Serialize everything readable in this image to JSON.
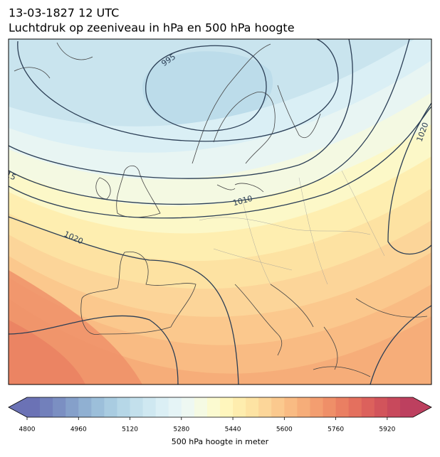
{
  "map": {
    "title": "13-03-1827 12 UTC",
    "subtitle": "Luchtdruk op zeeniveau in hPa en 500 hPa hoogte",
    "contour_labels": [
      995,
      1010,
      1020,
      1020,
      15
    ],
    "colorbar": {
      "label": "500 hPa hoogte in meter",
      "lim": [
        4800,
        6000
      ],
      "ticks": [
        4800,
        4960,
        5120,
        5280,
        5440,
        5600,
        5760,
        5920
      ],
      "colors": [
        "#6b72b5",
        "#7280bb",
        "#7b8fc2",
        "#85a0ca",
        "#90b0d2",
        "#9cbfda",
        "#a9cce1",
        "#b6d7e7",
        "#c3e0ec",
        "#cfe8f1",
        "#dbeff5",
        "#e5f4f6",
        "#eef8f2",
        "#f5fae3",
        "#fbfad0",
        "#fff6bd",
        "#feedae",
        "#fde3a3",
        "#fcd699",
        "#fbc98e",
        "#f9bb83",
        "#f6ad79",
        "#f39e70",
        "#ef8f68",
        "#ea7f62",
        "#e4705e",
        "#dc615c",
        "#d2545b",
        "#c8495c",
        "#bd405f"
      ]
    }
  }
}
